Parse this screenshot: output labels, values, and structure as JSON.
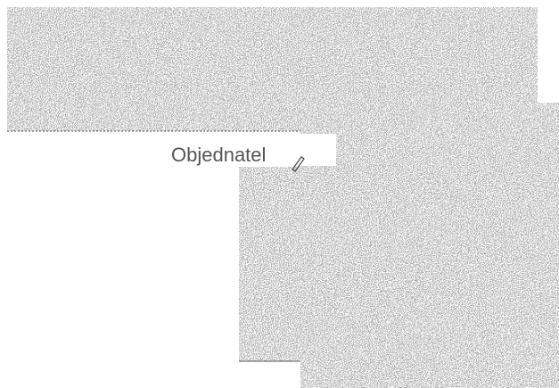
{
  "field": {
    "label": "Objednatel"
  }
}
